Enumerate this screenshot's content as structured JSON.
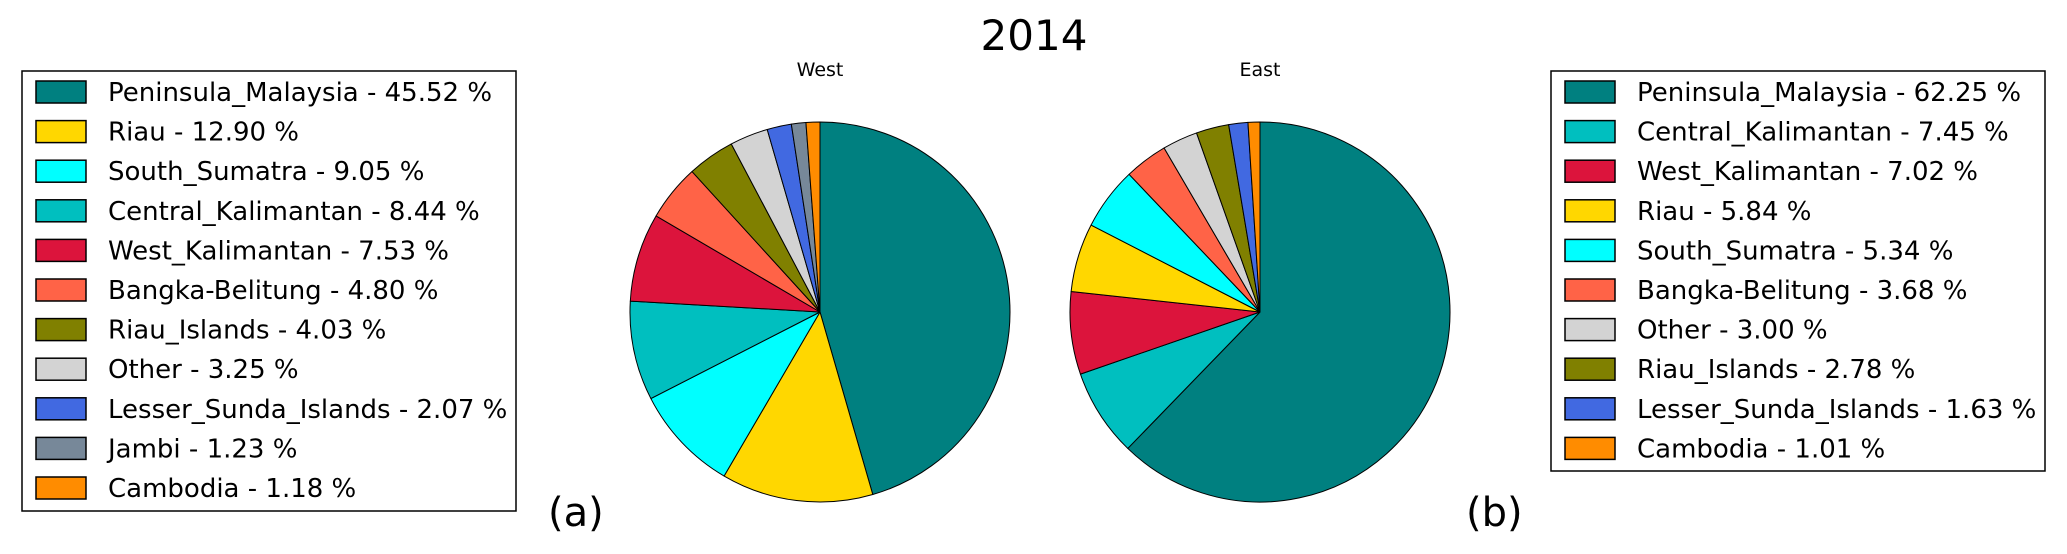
{
  "figure": {
    "title": "2014",
    "panel_a_label": "(a)",
    "panel_b_label": "(b)"
  },
  "chart_data": [
    {
      "type": "pie",
      "title": "West",
      "unit": "%",
      "labels": [
        "Peninsula_Malaysia",
        "Riau",
        "South_Sumatra",
        "Central_Kalimantan",
        "West_Kalimantan",
        "Bangka-Belitung",
        "Riau_Islands",
        "Other",
        "Lesser_Sunda_Islands",
        "Jambi",
        "Cambodia"
      ],
      "values": [
        45.52,
        12.9,
        9.05,
        8.44,
        7.53,
        4.8,
        4.03,
        3.25,
        2.07,
        1.23,
        1.18
      ],
      "legend_entries": [
        "Peninsula_Malaysia - 45.52 %",
        "Riau - 12.90 %",
        "South_Sumatra - 9.05 %",
        "Central_Kalimantan - 8.44 %",
        "West_Kalimantan - 7.53 %",
        "Bangka-Belitung - 4.80 %",
        "Riau_Islands - 4.03 %",
        "Other - 3.25 %",
        "Lesser_Sunda_Islands - 2.07 %",
        "Jambi - 1.23 %",
        "Cambodia - 1.18 %"
      ],
      "colors": [
        "#008080",
        "#FFD700",
        "#00FFFF",
        "#00BFBF",
        "#DC143C",
        "#FF6347",
        "#808000",
        "#D3D3D3",
        "#4169E1",
        "#778899",
        "#FF8C00"
      ],
      "legend_placement": "left",
      "start_angle_deg": 90,
      "direction": "clockwise"
    },
    {
      "type": "pie",
      "title": "East",
      "unit": "%",
      "labels": [
        "Peninsula_Malaysia",
        "Central_Kalimantan",
        "West_Kalimantan",
        "Riau",
        "South_Sumatra",
        "Bangka-Belitung",
        "Other",
        "Riau_Islands",
        "Lesser_Sunda_Islands",
        "Cambodia"
      ],
      "values": [
        62.25,
        7.45,
        7.02,
        5.84,
        5.34,
        3.68,
        3.0,
        2.78,
        1.63,
        1.01
      ],
      "legend_entries": [
        "Peninsula_Malaysia - 62.25 %",
        "Central_Kalimantan - 7.45 %",
        "West_Kalimantan - 7.02 %",
        "Riau - 5.84 %",
        "South_Sumatra - 5.34 %",
        "Bangka-Belitung - 3.68 %",
        "Other - 3.00 %",
        "Riau_Islands - 2.78 %",
        "Lesser_Sunda_Islands - 1.63 %",
        "Cambodia - 1.01 %"
      ],
      "colors": [
        "#008080",
        "#00BFBF",
        "#DC143C",
        "#FFD700",
        "#00FFFF",
        "#FF6347",
        "#D3D3D3",
        "#808000",
        "#4169E1",
        "#FF8C00"
      ],
      "legend_placement": "right",
      "start_angle_deg": 90,
      "direction": "clockwise"
    }
  ]
}
